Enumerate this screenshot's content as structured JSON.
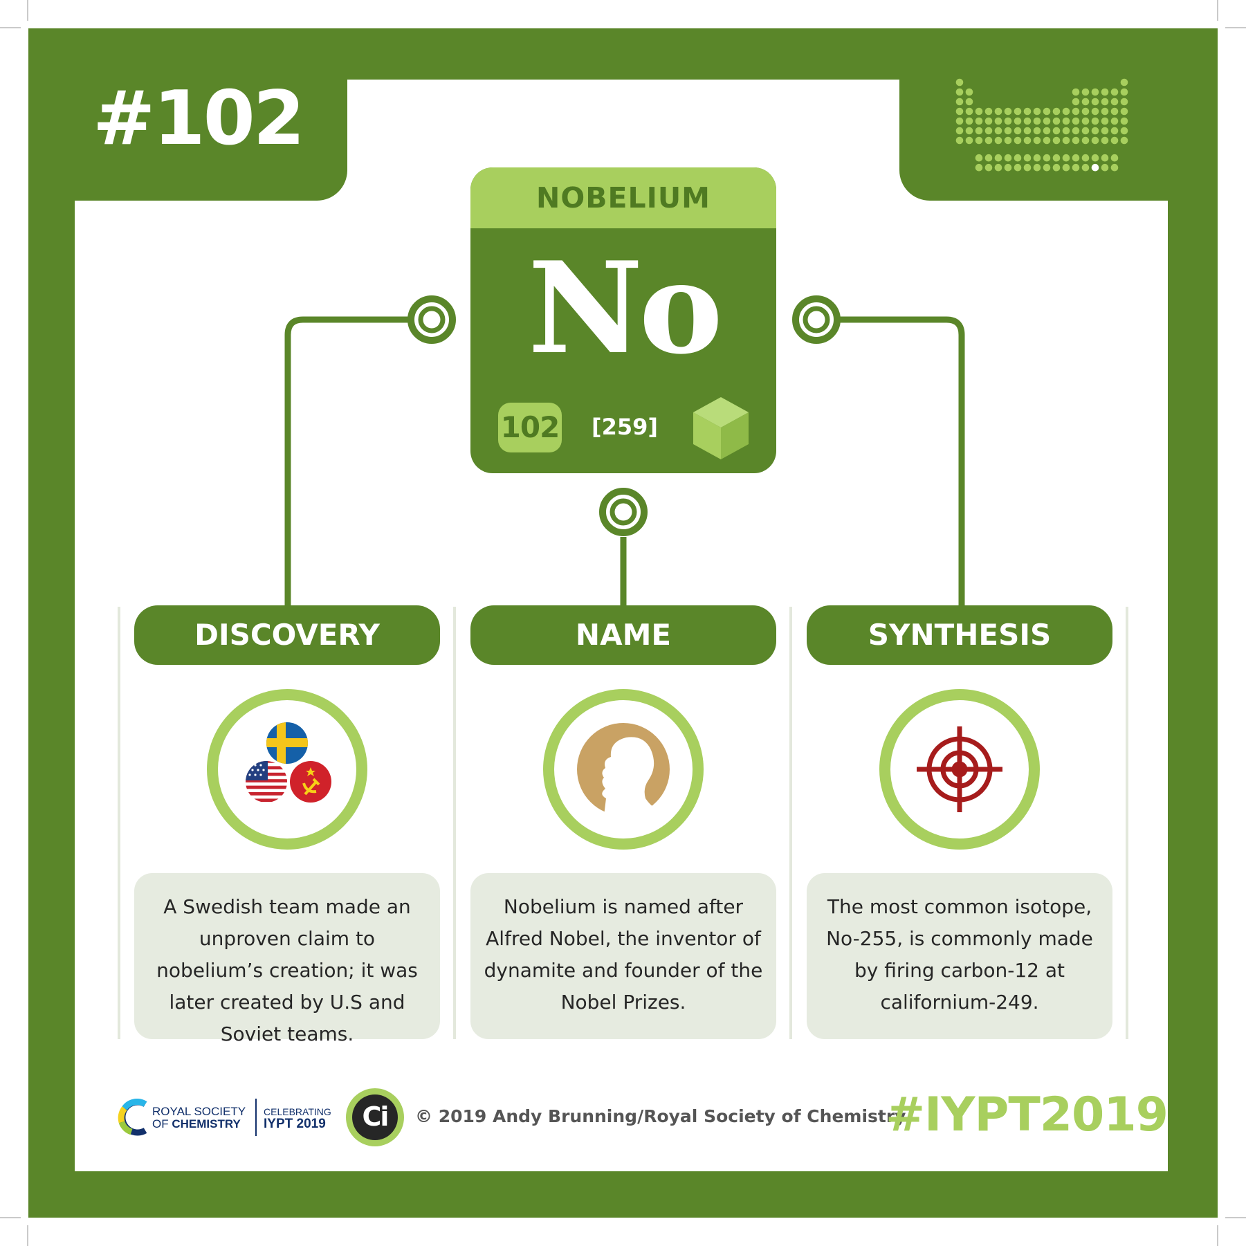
{
  "header": {
    "number": "#102"
  },
  "element": {
    "name": "NOBELIUM",
    "symbol": "No",
    "atomic_number": "102",
    "atomic_mass": "[259]",
    "state_icon": "solid-cube-icon"
  },
  "sections": [
    {
      "title": "DISCOVERY",
      "icon": "flags-icon",
      "text": "A Swedish team made an unproven claim to nobelium’s creation; it was later created by U.S and Soviet teams."
    },
    {
      "title": "NAME",
      "icon": "nobel-medal-icon",
      "text": "Nobelium is named after Alfred Nobel, the inventor of dynamite and founder of the Nobel Prizes."
    },
    {
      "title": "SYNTHESIS",
      "icon": "target-crosshair-icon",
      "text": "The most common isotope, No-255, is commonly made by firing carbon-12 at californium-249."
    }
  ],
  "footer": {
    "rsc_line1": "ROYAL SOCIETY",
    "rsc_line2_prefix": "OF",
    "rsc_line2_bold": "CHEMISTRY",
    "celebrating": "CELEBRATING",
    "iypt": "IYPT 2019",
    "ci_logo": "Ci",
    "copyright": "© 2019 Andy Brunning/Royal Society of Chemistry",
    "hashtag": "#IYPT2019"
  },
  "colors": {
    "dark_green": "#5a8629",
    "light_green": "#a8cf5e",
    "text_box": "#e6ebe0",
    "target_red": "#a61c1c",
    "medal_gold": "#c9a264"
  }
}
